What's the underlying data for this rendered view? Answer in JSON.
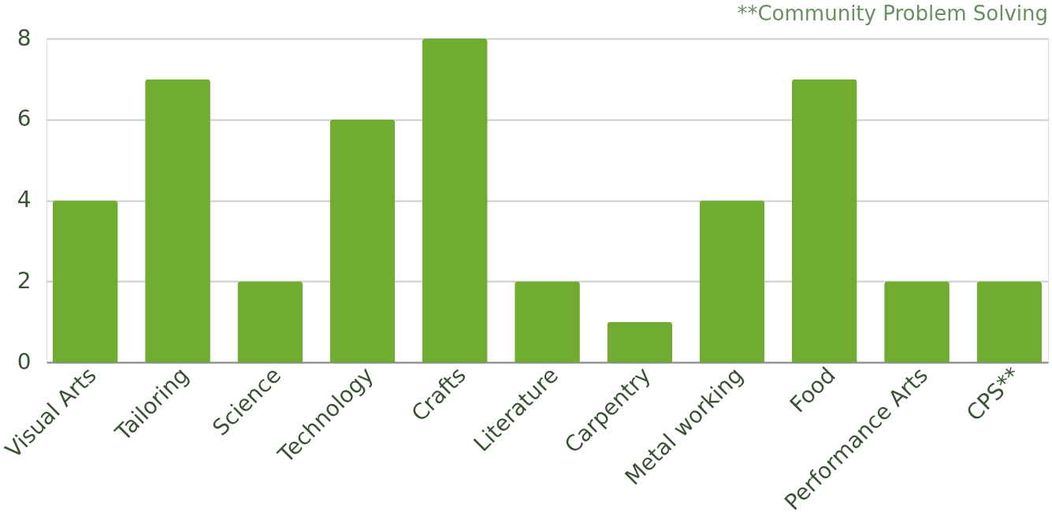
{
  "chart_data": {
    "type": "bar",
    "categories": [
      "Visual Arts",
      "Tailoring",
      "Science",
      "Technology",
      "Crafts",
      "Literature",
      "Carpentry",
      "Metal working",
      "Food",
      "Performance Arts",
      "CPS**"
    ],
    "values": [
      4,
      7,
      2,
      6,
      8,
      2,
      1,
      4,
      7,
      2,
      2
    ],
    "color": "#6fac2f",
    "ylim": [
      0,
      8
    ],
    "yticks": [
      0,
      2,
      4,
      6,
      8
    ],
    "grid": "y",
    "annotations": [
      "**Community Problem Solving"
    ]
  }
}
